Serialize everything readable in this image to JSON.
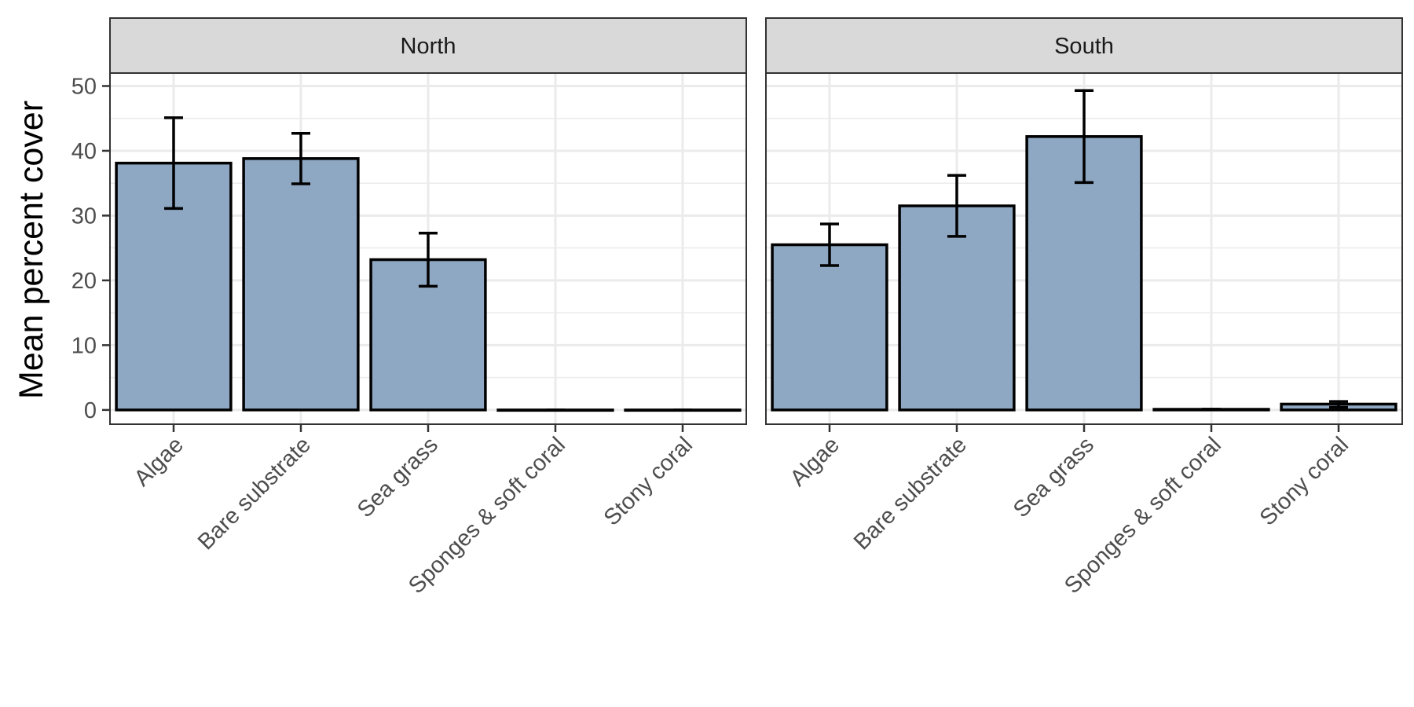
{
  "chart_data": {
    "type": "bar",
    "ylabel": "Mean percent cover",
    "ylim": [
      -2.2,
      52
    ],
    "y_ticks": [
      0,
      10,
      20,
      30,
      40,
      50
    ],
    "grid": true,
    "bar_fill": "#8EA7C2",
    "bar_outline": "#000000",
    "categories": [
      "Algae",
      "Bare substrate",
      "Sea grass",
      "Sponges & soft coral",
      "Stony coral"
    ],
    "panels": [
      {
        "facet": "North",
        "values": [
          38.1,
          38.8,
          23.2,
          0.0,
          0.0
        ],
        "error_low": [
          31.1,
          34.9,
          19.1,
          0.0,
          0.0
        ],
        "error_high": [
          45.1,
          42.7,
          27.3,
          0.0,
          0.0
        ]
      },
      {
        "facet": "South",
        "values": [
          25.5,
          31.5,
          42.2,
          0.1,
          0.9
        ],
        "error_low": [
          22.3,
          26.8,
          35.1,
          0.1,
          0.4
        ],
        "error_high": [
          28.7,
          36.2,
          49.3,
          0.1,
          1.3
        ]
      }
    ]
  }
}
